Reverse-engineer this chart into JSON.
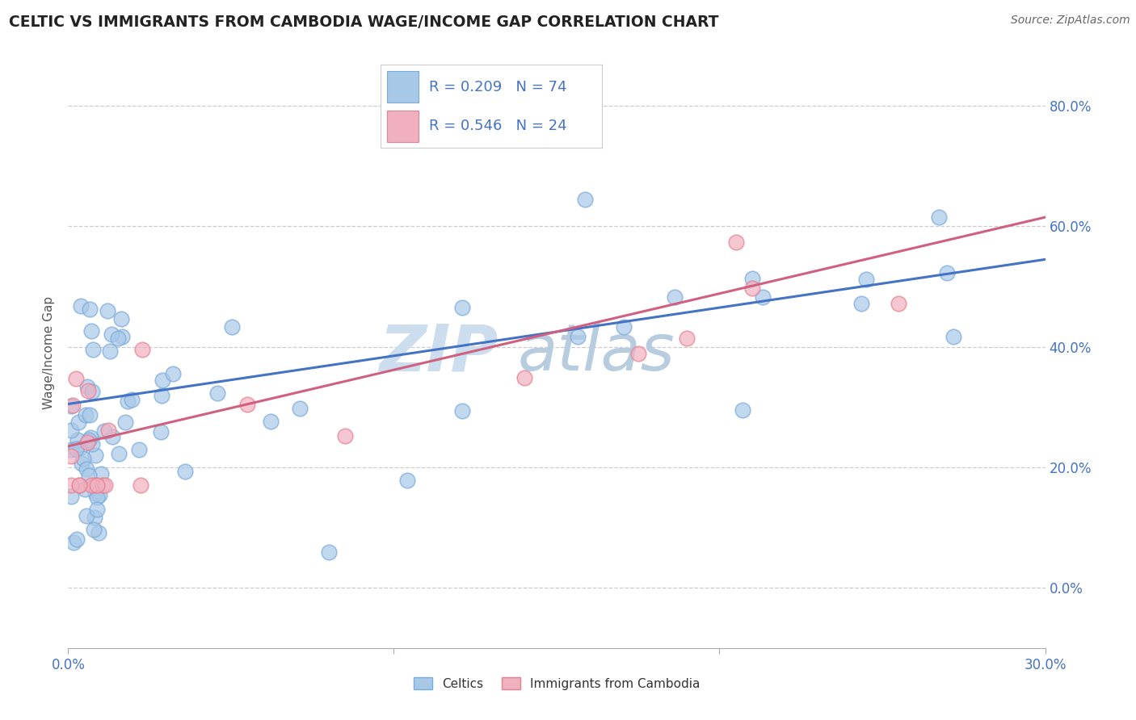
{
  "title": "CELTIC VS IMMIGRANTS FROM CAMBODIA WAGE/INCOME GAP CORRELATION CHART",
  "source": "Source: ZipAtlas.com",
  "ylabel": "Wage/Income Gap",
  "xlim": [
    0.0,
    0.3
  ],
  "ylim": [
    -0.1,
    0.88
  ],
  "yticks": [
    0.0,
    0.2,
    0.4,
    0.6,
    0.8
  ],
  "xticks": [
    0.0,
    0.1,
    0.2,
    0.3
  ],
  "xtick_labels": [
    "0.0%",
    "",
    "",
    "30.0%"
  ],
  "blue_R": 0.209,
  "blue_N": 74,
  "pink_R": 0.546,
  "pink_N": 24,
  "blue_color": "#a8c8e8",
  "pink_color": "#f0b0c0",
  "blue_edge_color": "#7aabda",
  "pink_edge_color": "#e88090",
  "blue_line_color": "#4472c4",
  "pink_line_color": "#d06080",
  "watermark_zip": "ZIP",
  "watermark_atlas": "atlas",
  "watermark_color_zip": "#c8d8ea",
  "watermark_color_atlas": "#b8cce0",
  "legend_label_blue": "Celtics",
  "legend_label_pink": "Immigrants from Cambodia",
  "title_color": "#222222",
  "axis_color": "#4472c4",
  "blue_line_x0": 0.0,
  "blue_line_y0": 0.305,
  "blue_line_x1": 0.3,
  "blue_line_y1": 0.545,
  "pink_line_x0": 0.0,
  "pink_line_y0": 0.235,
  "pink_line_x1": 0.3,
  "pink_line_y1": 0.615
}
